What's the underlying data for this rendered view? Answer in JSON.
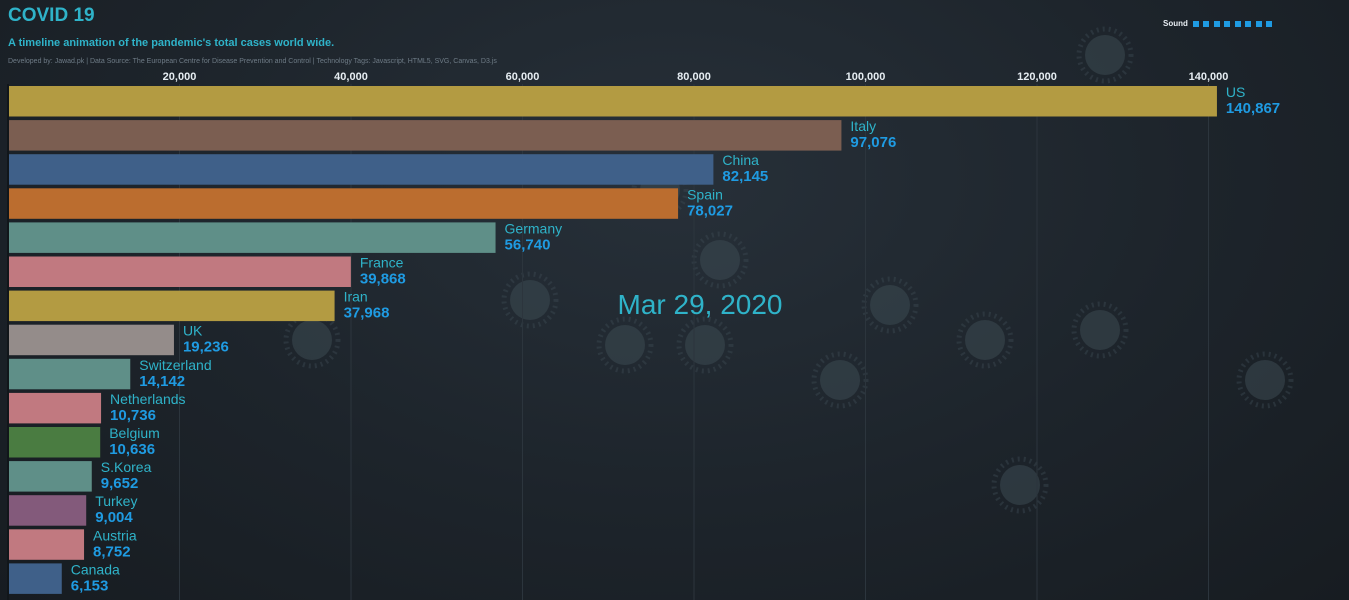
{
  "header": {
    "title": "COVID 19",
    "subtitle": "A timeline animation of the pandemic's total cases world wide.",
    "credits": "Developed by: Jawad.pk | Data Source: The European Centre for Disease Prevention and Control | Technology Tags: Javascript, HTML5, SVG, Canvas, D3.js"
  },
  "sound": {
    "label": "Sound",
    "levels": 8
  },
  "chart_data": {
    "type": "bar",
    "orientation": "horizontal",
    "date": "Mar 29, 2020",
    "x_ticks": [
      20000,
      40000,
      60000,
      80000,
      100000,
      120000,
      140000
    ],
    "xlim": [
      0,
      140000
    ],
    "grid": true,
    "categories": [
      "US",
      "Italy",
      "China",
      "Spain",
      "Germany",
      "France",
      "Iran",
      "UK",
      "Switzerland",
      "Netherlands",
      "Belgium",
      "S.Korea",
      "Turkey",
      "Austria",
      "Canada"
    ],
    "values": [
      140867,
      97076,
      82145,
      78027,
      56740,
      39868,
      37968,
      19236,
      14142,
      10736,
      10636,
      9652,
      9004,
      8752,
      6153
    ],
    "colors": [
      "#b39b42",
      "#7b5e51",
      "#3f6089",
      "#bb6d2f",
      "#5f8f88",
      "#c17980",
      "#b39b42",
      "#948c8a",
      "#5f8f88",
      "#c17980",
      "#4a7c41",
      "#5f8f88",
      "#835a7b",
      "#c17980",
      "#3f6089"
    ]
  }
}
